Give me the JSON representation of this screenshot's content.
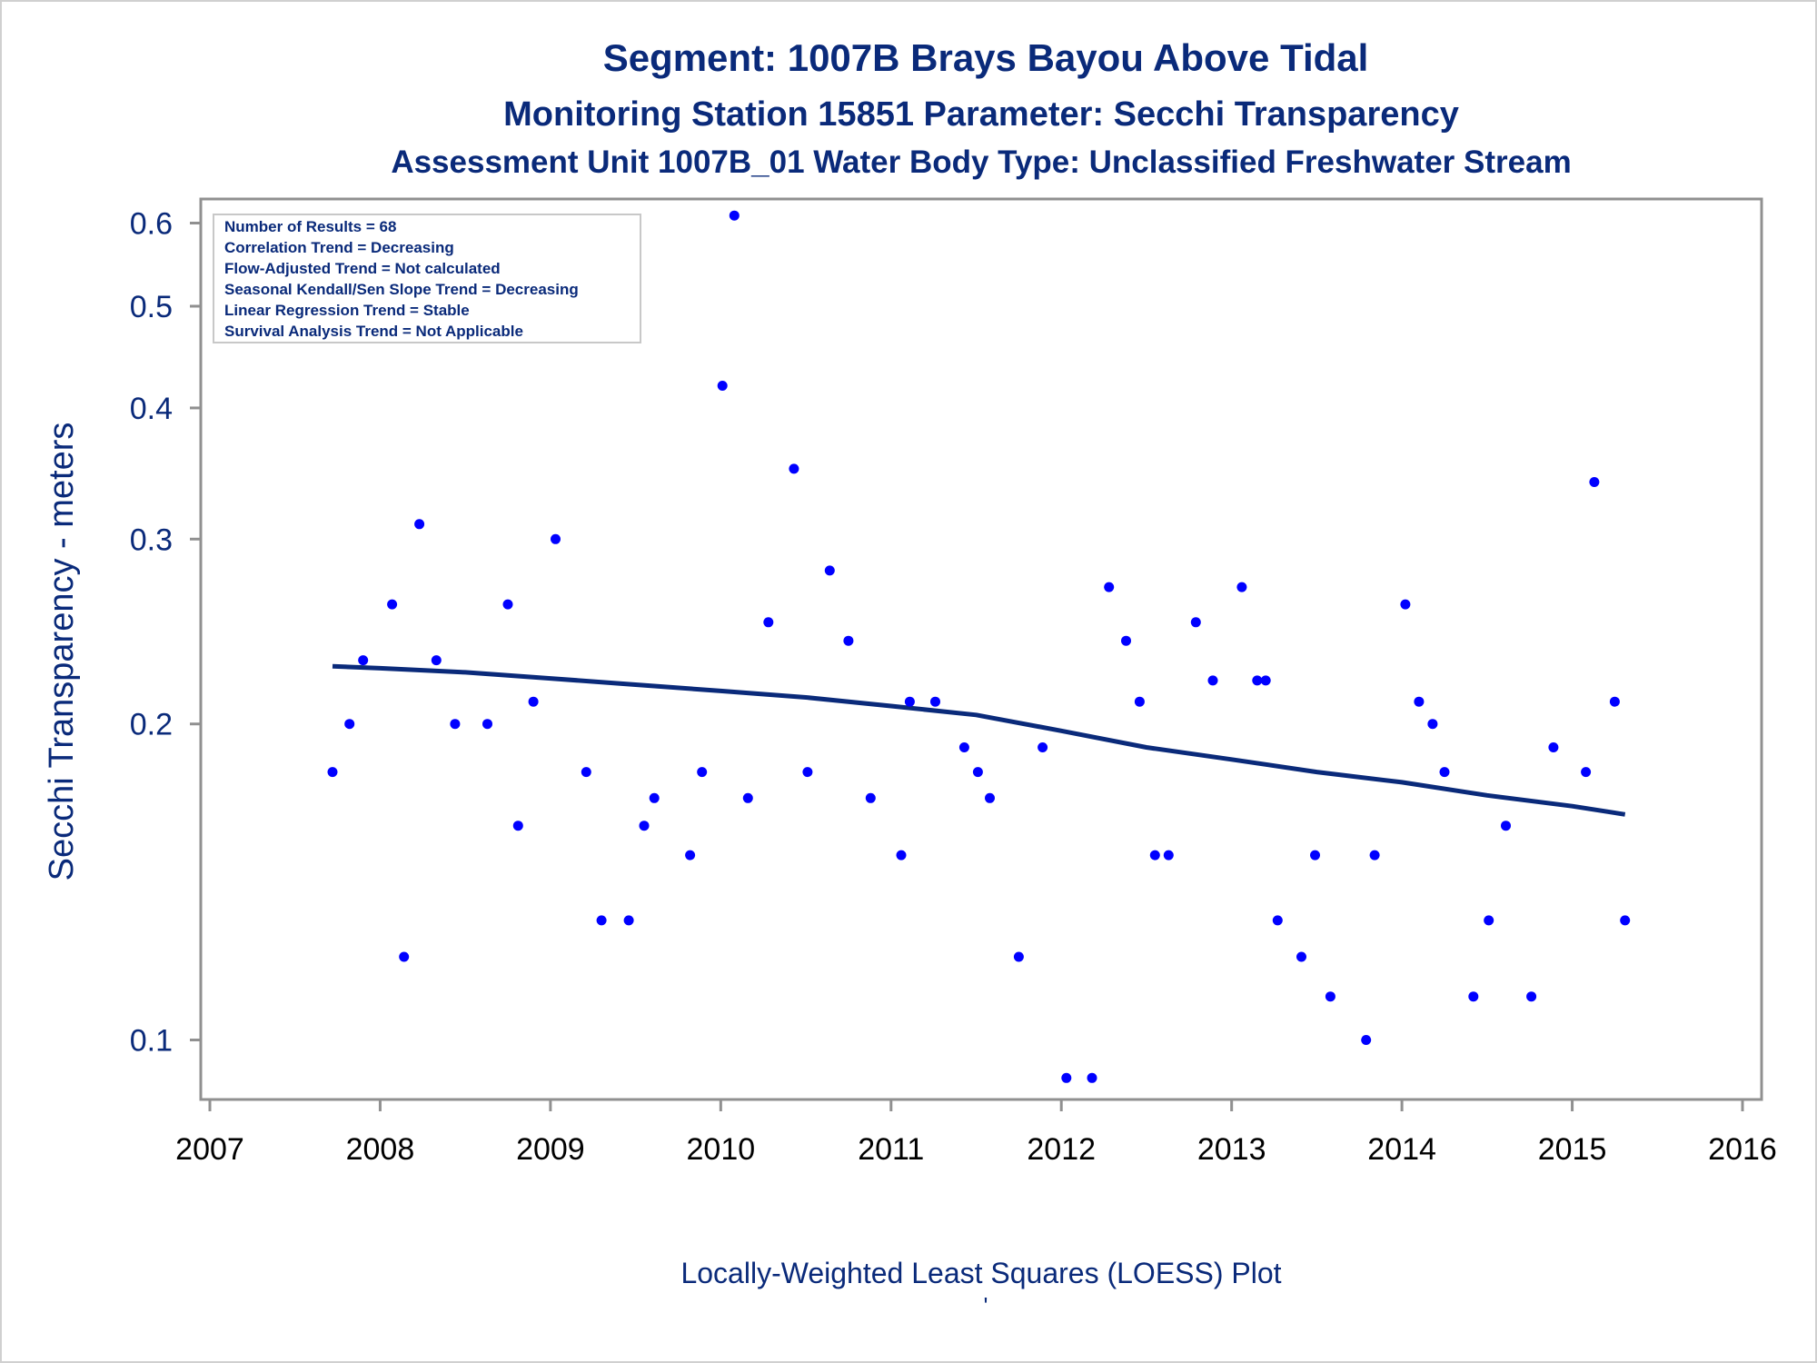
{
  "titles": {
    "line1": "Segment: 1007B  Brays Bayou Above Tidal",
    "line2": "Monitoring Station 15851 Parameter: Secchi Transparency",
    "line3": "Assessment Unit 1007B_01   Water Body Type: Unclassified Freshwater Stream"
  },
  "stats": [
    "Number of Results = 68",
    "Correlation Trend = Decreasing",
    "Flow-Adjusted Trend = Not calculated",
    "Seasonal Kendall/Sen Slope Trend = Decreasing",
    "Linear Regression Trend = Stable",
    "Survival Analysis Trend = Not Applicable"
  ],
  "footer": {
    "caption": "Locally-Weighted Least Squares (LOESS) Plot",
    "mark": "'"
  },
  "colors": {
    "text": "#0a2a7a",
    "points": "#0000ff",
    "loess": "#0a2a7a",
    "axis": "#909090"
  },
  "chart_data": {
    "type": "scatter",
    "title": "Segment: 1007B  Brays Bayou Above Tidal",
    "xlabel": "",
    "ylabel": "Secchi Transparency - meters",
    "yscale": "log",
    "xlim": [
      2007,
      2016
    ],
    "ylim": [
      0.085,
      0.63
    ],
    "xticks": [
      2007,
      2008,
      2009,
      2010,
      2011,
      2012,
      2013,
      2014,
      2015,
      2016
    ],
    "yticks": [
      0.1,
      0.2,
      0.3,
      0.4,
      0.5,
      0.6
    ],
    "ytick_labels": [
      "0.1",
      "0.2",
      "0.3",
      "0.4",
      "0.5",
      "0.6"
    ],
    "series": [
      {
        "name": "Measurements",
        "points": [
          [
            2007.72,
            0.18
          ],
          [
            2007.82,
            0.2
          ],
          [
            2007.9,
            0.23
          ],
          [
            2008.07,
            0.26
          ],
          [
            2008.14,
            0.12
          ],
          [
            2008.23,
            0.31
          ],
          [
            2008.33,
            0.23
          ],
          [
            2008.44,
            0.2
          ],
          [
            2008.63,
            0.2
          ],
          [
            2008.75,
            0.26
          ],
          [
            2008.81,
            0.16
          ],
          [
            2008.9,
            0.21
          ],
          [
            2009.03,
            0.3
          ],
          [
            2009.21,
            0.18
          ],
          [
            2009.3,
            0.13
          ],
          [
            2009.46,
            0.13
          ],
          [
            2009.55,
            0.16
          ],
          [
            2009.61,
            0.17
          ],
          [
            2009.82,
            0.15
          ],
          [
            2009.89,
            0.18
          ],
          [
            2010.01,
            0.42
          ],
          [
            2010.08,
            0.61
          ],
          [
            2010.16,
            0.17
          ],
          [
            2010.28,
            0.25
          ],
          [
            2010.43,
            0.35
          ],
          [
            2010.51,
            0.18
          ],
          [
            2010.64,
            0.28
          ],
          [
            2010.75,
            0.24
          ],
          [
            2010.88,
            0.17
          ],
          [
            2011.06,
            0.15
          ],
          [
            2011.11,
            0.21
          ],
          [
            2011.26,
            0.21
          ],
          [
            2011.43,
            0.19
          ],
          [
            2011.51,
            0.18
          ],
          [
            2011.58,
            0.17
          ],
          [
            2011.75,
            0.12
          ],
          [
            2011.89,
            0.19
          ],
          [
            2012.03,
            0.092
          ],
          [
            2012.18,
            0.092
          ],
          [
            2012.28,
            0.27
          ],
          [
            2012.38,
            0.24
          ],
          [
            2012.46,
            0.21
          ],
          [
            2012.55,
            0.15
          ],
          [
            2012.63,
            0.15
          ],
          [
            2012.79,
            0.25
          ],
          [
            2012.89,
            0.22
          ],
          [
            2013.06,
            0.27
          ],
          [
            2013.15,
            0.22
          ],
          [
            2013.2,
            0.22
          ],
          [
            2013.27,
            0.13
          ],
          [
            2013.41,
            0.12
          ],
          [
            2013.49,
            0.15
          ],
          [
            2013.58,
            0.11
          ],
          [
            2013.79,
            0.1
          ],
          [
            2013.84,
            0.15
          ],
          [
            2014.02,
            0.26
          ],
          [
            2014.1,
            0.21
          ],
          [
            2014.18,
            0.2
          ],
          [
            2014.25,
            0.18
          ],
          [
            2014.42,
            0.11
          ],
          [
            2014.51,
            0.13
          ],
          [
            2014.61,
            0.16
          ],
          [
            2014.76,
            0.11
          ],
          [
            2014.89,
            0.19
          ],
          [
            2015.08,
            0.18
          ],
          [
            2015.13,
            0.34
          ],
          [
            2015.25,
            0.21
          ],
          [
            2015.31,
            0.13
          ]
        ]
      },
      {
        "name": "LOESS",
        "line": [
          [
            2007.72,
            0.227
          ],
          [
            2008.0,
            0.226
          ],
          [
            2008.5,
            0.224
          ],
          [
            2009.0,
            0.221
          ],
          [
            2009.5,
            0.218
          ],
          [
            2010.0,
            0.215
          ],
          [
            2010.5,
            0.212
          ],
          [
            2011.0,
            0.208
          ],
          [
            2011.5,
            0.204
          ],
          [
            2012.0,
            0.197
          ],
          [
            2012.5,
            0.19
          ],
          [
            2013.0,
            0.185
          ],
          [
            2013.5,
            0.18
          ],
          [
            2014.0,
            0.176
          ],
          [
            2014.5,
            0.171
          ],
          [
            2015.0,
            0.167
          ],
          [
            2015.31,
            0.164
          ]
        ]
      }
    ]
  }
}
